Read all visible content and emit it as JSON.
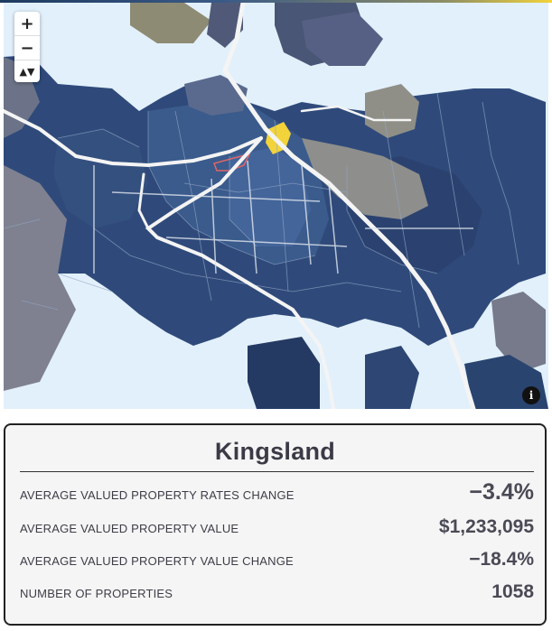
{
  "map": {
    "zoom_in_label": "+",
    "zoom_out_label": "−",
    "reset_north_label": "▲▼",
    "info_label": "i",
    "selected_suburb_color": "#f2d33a",
    "highlight_outline_color": "#e06666",
    "water_color": "#e2f0fb"
  },
  "panel": {
    "title": "Kingsland",
    "stats": [
      {
        "label": "AVERAGE VALUED PROPERTY RATES CHANGE",
        "value": "−3.4%"
      },
      {
        "label": "AVERAGE VALUED PROPERTY VALUE",
        "value": "$1,233,095"
      },
      {
        "label": "AVERAGE VALUED PROPERTY VALUE CHANGE",
        "value": "−18.4%"
      },
      {
        "label": "NUMBER OF PROPERTIES",
        "value": "1058"
      }
    ]
  }
}
